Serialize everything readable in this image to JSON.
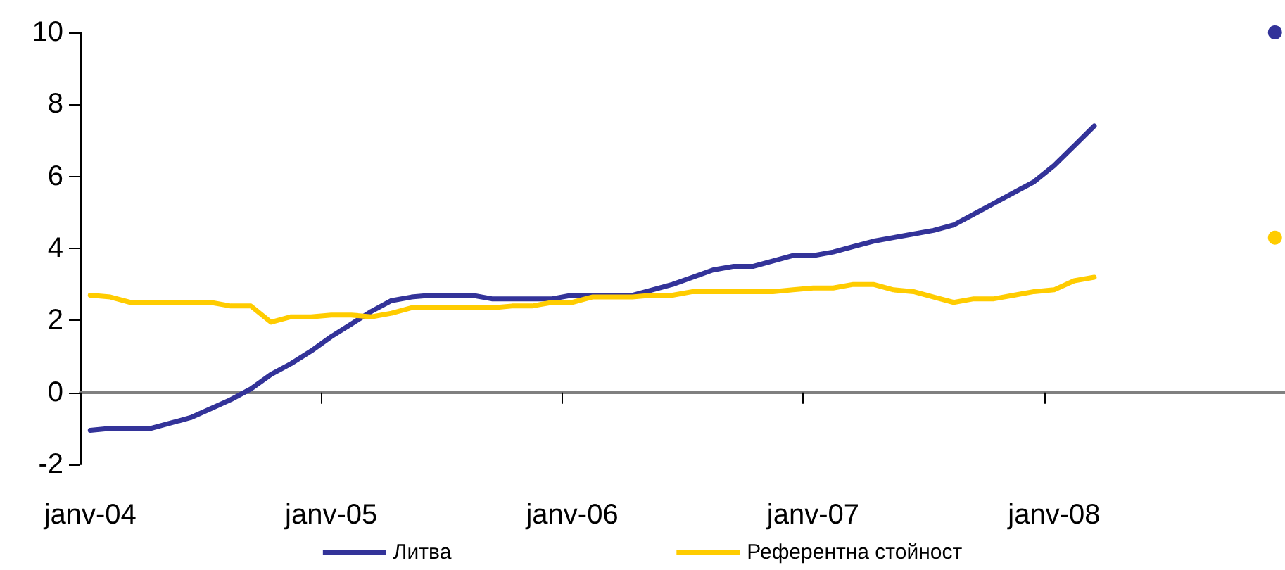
{
  "chart_data": {
    "type": "line",
    "categories": [
      "janv-04",
      null,
      null,
      null,
      null,
      null,
      null,
      null,
      null,
      null,
      null,
      null,
      "janv-05",
      null,
      null,
      null,
      null,
      null,
      null,
      null,
      null,
      null,
      null,
      null,
      "janv-06",
      null,
      null,
      null,
      null,
      null,
      null,
      null,
      null,
      null,
      null,
      null,
      "janv-07",
      null,
      null,
      null,
      null,
      null,
      null,
      null,
      null,
      null,
      null,
      null,
      "janv-08",
      null,
      null,
      null,
      null,
      null,
      null,
      null,
      null,
      null,
      null,
      null
    ],
    "series": [
      {
        "name": "Литва",
        "color": "#333399",
        "values": [
          -1.05,
          -1.0,
          -1.0,
          -1.0,
          -0.85,
          -0.7,
          -0.45,
          -0.2,
          0.1,
          0.5,
          0.8,
          1.15,
          1.55,
          1.9,
          2.25,
          2.55,
          2.65,
          2.7,
          2.7,
          2.7,
          2.6,
          2.6,
          2.6,
          2.6,
          2.7,
          2.7,
          2.7,
          2.7,
          2.85,
          3.0,
          3.2,
          3.4,
          3.5,
          3.5,
          3.65,
          3.8,
          3.8,
          3.9,
          4.05,
          4.2,
          4.3,
          4.4,
          4.5,
          4.65,
          4.95,
          5.25,
          5.55,
          5.85,
          6.3,
          6.85,
          7.4,
          null,
          null,
          null,
          null,
          null,
          null,
          null,
          null,
          null
        ]
      },
      {
        "name": "Референтна стойност",
        "color": "#ffcc00",
        "values": [
          2.7,
          2.65,
          2.5,
          2.5,
          2.5,
          2.5,
          2.5,
          2.4,
          2.4,
          1.95,
          2.1,
          2.1,
          2.15,
          2.15,
          2.1,
          2.2,
          2.35,
          2.35,
          2.35,
          2.35,
          2.35,
          2.4,
          2.4,
          2.5,
          2.5,
          2.65,
          2.65,
          2.65,
          2.7,
          2.7,
          2.8,
          2.8,
          2.8,
          2.8,
          2.8,
          2.85,
          2.9,
          2.9,
          3.0,
          3.0,
          2.85,
          2.8,
          2.65,
          2.5,
          2.6,
          2.6,
          2.7,
          2.8,
          2.85,
          3.1,
          3.2,
          null,
          null,
          null,
          null,
          null,
          null,
          null,
          null,
          null
        ]
      },
      {
        "type": "scatter",
        "marker": "circle",
        "color": "#333399",
        "values": [
          null,
          null,
          null,
          null,
          null,
          null,
          null,
          null,
          null,
          null,
          null,
          null,
          null,
          null,
          null,
          null,
          null,
          null,
          null,
          null,
          null,
          null,
          null,
          null,
          null,
          null,
          null,
          null,
          null,
          null,
          null,
          null,
          null,
          null,
          null,
          null,
          null,
          null,
          null,
          null,
          null,
          null,
          null,
          null,
          null,
          null,
          null,
          null,
          null,
          null,
          null,
          null,
          null,
          null,
          null,
          null,
          null,
          null,
          null,
          10
        ]
      },
      {
        "type": "scatter",
        "marker": "circle",
        "color": "#ffcc00",
        "values": [
          null,
          null,
          null,
          null,
          null,
          null,
          null,
          null,
          null,
          null,
          null,
          null,
          null,
          null,
          null,
          null,
          null,
          null,
          null,
          null,
          null,
          null,
          null,
          null,
          null,
          null,
          null,
          null,
          null,
          null,
          null,
          null,
          null,
          null,
          null,
          null,
          null,
          null,
          null,
          null,
          null,
          null,
          null,
          null,
          null,
          null,
          null,
          null,
          null,
          null,
          null,
          null,
          null,
          null,
          null,
          null,
          null,
          null,
          null,
          4.3
        ]
      }
    ],
    "ylim": [
      -2,
      10
    ],
    "yticks": [
      -2,
      0,
      2,
      4,
      6,
      8,
      10
    ],
    "legend": "bottom",
    "marker": "none",
    "line_style": "solid"
  }
}
